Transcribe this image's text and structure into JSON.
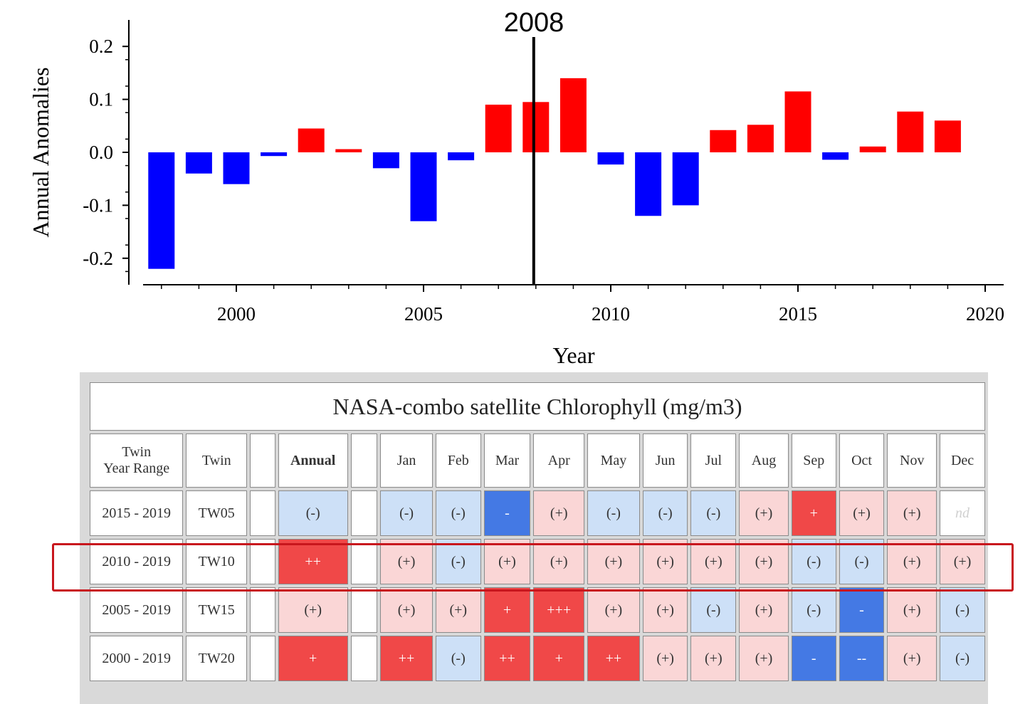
{
  "chart_data": {
    "type": "bar",
    "x": [
      1998,
      1999,
      2000,
      2001,
      2002,
      2003,
      2004,
      2005,
      2006,
      2007,
      2008,
      2009,
      2010,
      2011,
      2012,
      2013,
      2014,
      2015,
      2016,
      2017,
      2018,
      2019
    ],
    "values": [
      -0.22,
      -0.04,
      -0.06,
      -0.007,
      0.045,
      0.006,
      -0.03,
      -0.13,
      -0.015,
      0.09,
      0.095,
      0.14,
      -0.023,
      -0.12,
      -0.1,
      0.042,
      0.052,
      0.115,
      -0.014,
      0.011,
      0.077,
      0.06
    ],
    "xlabel": "Year",
    "ylabel": "Annual Anomalies",
    "xlim": [
      1997.5,
      2020.5
    ],
    "ylim": [
      -0.25,
      0.25
    ],
    "xticks": [
      "2000",
      "2005",
      "2010",
      "2015",
      "2020"
    ],
    "yticks": [
      "0.2",
      "0.1",
      "0.0",
      "-0.1",
      "-0.2"
    ],
    "positive_color": "#ff0000",
    "negative_color": "#0000ff",
    "marker_line": {
      "x": 2008,
      "label": "2008"
    },
    "grid": false,
    "legend": "none"
  },
  "table": {
    "title": "NASA-combo satellite Chlorophyll (mg/m3)",
    "headers": {
      "range_line1": "Twin",
      "range_line2": "Year Range",
      "twin": "Twin",
      "blank1": "",
      "annual": "Annual",
      "blank2": "",
      "months": [
        "Jan",
        "Feb",
        "Mar",
        "Apr",
        "May",
        "Jun",
        "Jul",
        "Aug",
        "Sep",
        "Oct",
        "Nov",
        "Dec"
      ]
    },
    "rows": [
      {
        "range": "2015 - 2019",
        "twin": "TW05",
        "annual": "(-)",
        "annual_class": "neg1",
        "months": [
          "(-)",
          "(-)",
          "-",
          "(+)",
          "(-)",
          "(-)",
          "(-)",
          "(+)",
          "+",
          "(+)",
          "(+)",
          "nd"
        ],
        "classes": [
          "neg1",
          "neg1",
          "neg2",
          "pos1",
          "neg1",
          "neg1",
          "neg1",
          "pos1",
          "pos2",
          "pos1",
          "pos1",
          "nd"
        ]
      },
      {
        "range": "2010 - 2019",
        "twin": "TW10",
        "annual": "++",
        "annual_class": "pos2",
        "months": [
          "(+)",
          "(-)",
          "(+)",
          "(+)",
          "(+)",
          "(+)",
          "(+)",
          "(+)",
          "(-)",
          "(-)",
          "(+)",
          "(+)"
        ],
        "classes": [
          "pos1",
          "neg1",
          "pos1",
          "pos1",
          "pos1",
          "pos1",
          "pos1",
          "pos1",
          "neg1",
          "neg1",
          "pos1",
          "pos1"
        ]
      },
      {
        "range": "2005 - 2019",
        "twin": "TW15",
        "annual": "(+)",
        "annual_class": "pos1",
        "months": [
          "(+)",
          "(+)",
          "+",
          "+++",
          "(+)",
          "(+)",
          "(-)",
          "(+)",
          "(-)",
          "-",
          "(+)",
          "(-)"
        ],
        "classes": [
          "pos1",
          "pos1",
          "pos2",
          "pos2",
          "pos1",
          "pos1",
          "neg1",
          "pos1",
          "neg1",
          "neg2",
          "pos1",
          "neg1"
        ]
      },
      {
        "range": "2000 - 2019",
        "twin": "TW20",
        "annual": "+",
        "annual_class": "pos2",
        "months": [
          "++",
          "(-)",
          "++",
          "+",
          "++",
          "(+)",
          "(+)",
          "(+)",
          "-",
          "--",
          "(+)",
          "(-)"
        ],
        "classes": [
          "pos2",
          "neg1",
          "pos2",
          "pos2",
          "pos2",
          "pos1",
          "pos1",
          "pos1",
          "neg2",
          "neg2",
          "pos1",
          "neg1"
        ]
      }
    ],
    "highlight_color": "#c8161d"
  }
}
